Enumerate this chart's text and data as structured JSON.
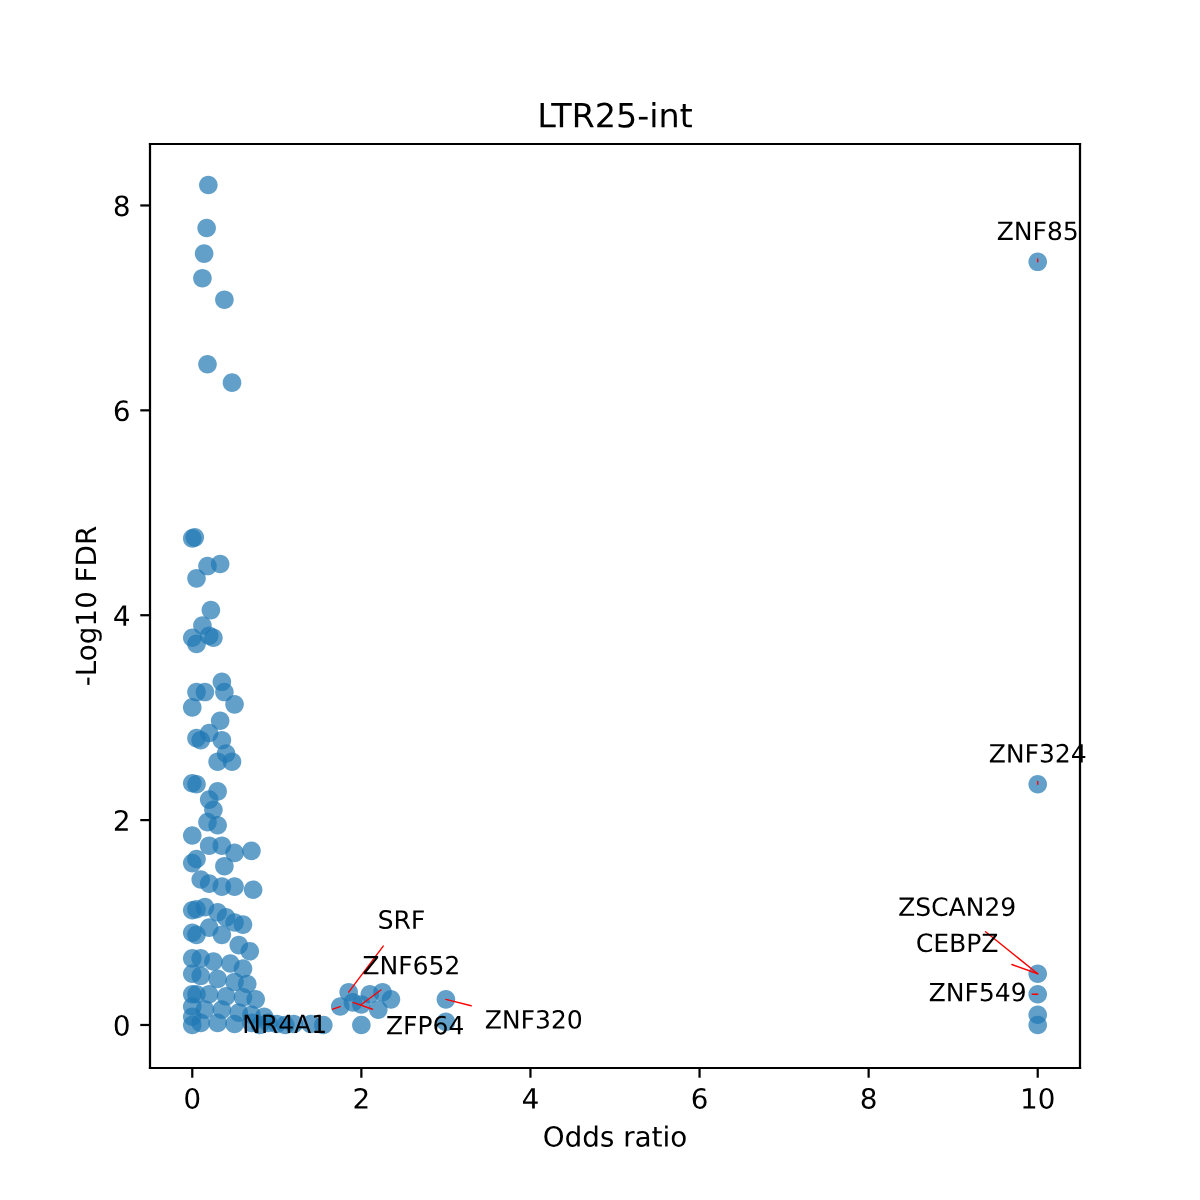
{
  "chart_data": {
    "type": "scatter",
    "title": "LTR25-int",
    "xlabel": "Odds ratio",
    "ylabel": "-Log10 FDR",
    "xlim": [
      -0.5,
      10.5
    ],
    "ylim": [
      -0.42,
      8.6
    ],
    "xticks": [
      0,
      2,
      4,
      6,
      8,
      10
    ],
    "yticks": [
      0,
      2,
      4,
      6,
      8
    ],
    "grid": false,
    "marker": "circle",
    "series": [
      {
        "color": "#1f77b4",
        "x": [
          0.19,
          0.17,
          0.14,
          0.12,
          0.38,
          0.18,
          0.47,
          0,
          0.03,
          0.33,
          0.18,
          0.05,
          0.22,
          0.2,
          0.25,
          0,
          0.05,
          0.12,
          0.35,
          0.38,
          0.05,
          0.15,
          0.5,
          0,
          0.33,
          0.2,
          0.05,
          0.1,
          0.35,
          0.4,
          0.3,
          0.47,
          0,
          0.05,
          0.3,
          0.2,
          0.25,
          0.18,
          0.3,
          0,
          0.2,
          0.35,
          0.5,
          0.7,
          0.05,
          0,
          0.38,
          0.1,
          0.2,
          0.35,
          0.5,
          0.72,
          0,
          0.05,
          0.15,
          0.3,
          0.4,
          0.5,
          0.6,
          0.2,
          0,
          0.05,
          0.35,
          0.55,
          0.68,
          0,
          0.1,
          0.25,
          0.45,
          0.6,
          0,
          0.1,
          0.3,
          0.5,
          0.65,
          0,
          0.05,
          0.2,
          0.4,
          0.6,
          0.75,
          0,
          0.15,
          0.35,
          0.55,
          0.7,
          0.85,
          0,
          0,
          0.1,
          0.3,
          0.5,
          0.7,
          0.9,
          1.0,
          1.2,
          1.4,
          1.55,
          0.8,
          1.1,
          1.75,
          1.85,
          1.9,
          2.0,
          2.0,
          2.1,
          2.25,
          2.35,
          2.2,
          3.0,
          3.0,
          10,
          10,
          10,
          10,
          10,
          10
        ],
        "values": [
          8.2,
          7.78,
          7.53,
          7.29,
          7.08,
          6.45,
          6.27,
          4.75,
          4.76,
          4.5,
          4.48,
          4.36,
          4.05,
          3.8,
          3.78,
          3.78,
          3.72,
          3.9,
          3.35,
          3.25,
          3.25,
          3.25,
          3.13,
          3.1,
          2.97,
          2.85,
          2.8,
          2.78,
          2.78,
          2.65,
          2.57,
          2.57,
          2.36,
          2.35,
          2.28,
          2.2,
          2.1,
          1.98,
          1.95,
          1.85,
          1.75,
          1.75,
          1.68,
          1.7,
          1.62,
          1.58,
          1.55,
          1.42,
          1.38,
          1.35,
          1.35,
          1.32,
          1.12,
          1.13,
          1.15,
          1.1,
          1.05,
          1.0,
          0.98,
          0.95,
          0.9,
          0.88,
          0.88,
          0.78,
          0.72,
          0.65,
          0.65,
          0.62,
          0.6,
          0.55,
          0.5,
          0.48,
          0.45,
          0.42,
          0.4,
          0.3,
          0.3,
          0.3,
          0.28,
          0.27,
          0.25,
          0.18,
          0.15,
          0.15,
          0.12,
          0.1,
          0.08,
          0.08,
          0,
          0.02,
          0.02,
          0.01,
          0.02,
          0.02,
          0.01,
          0.01,
          0.01,
          0,
          0,
          0,
          0.18,
          0.32,
          0.22,
          0.2,
          0,
          0.3,
          0.32,
          0.25,
          0.15,
          0.25,
          0.03,
          7.45,
          2.35,
          0.5,
          0.3,
          0.1,
          0
        ]
      }
    ],
    "annotations": [
      {
        "text": "ZNF85",
        "x": 10,
        "y": 7.45
      },
      {
        "text": "ZNF324",
        "x": 10,
        "y": 2.35
      },
      {
        "text": "ZSCAN29",
        "x": 10,
        "y": 0.5
      },
      {
        "text": "CEBPZ",
        "x": 10,
        "y": 0.5
      },
      {
        "text": "ZNF549",
        "x": 10,
        "y": 0.3
      },
      {
        "text": "SRF",
        "x": 1.85,
        "y": 0.32
      },
      {
        "text": "ZNF652",
        "x": 2.0,
        "y": 0.2
      },
      {
        "text": "ZFP64",
        "x": 1.9,
        "y": 0.22
      },
      {
        "text": "NR4A1",
        "x": 1.75,
        "y": 0.18
      },
      {
        "text": "ZNF320",
        "x": 3.0,
        "y": 0.25
      }
    ]
  }
}
